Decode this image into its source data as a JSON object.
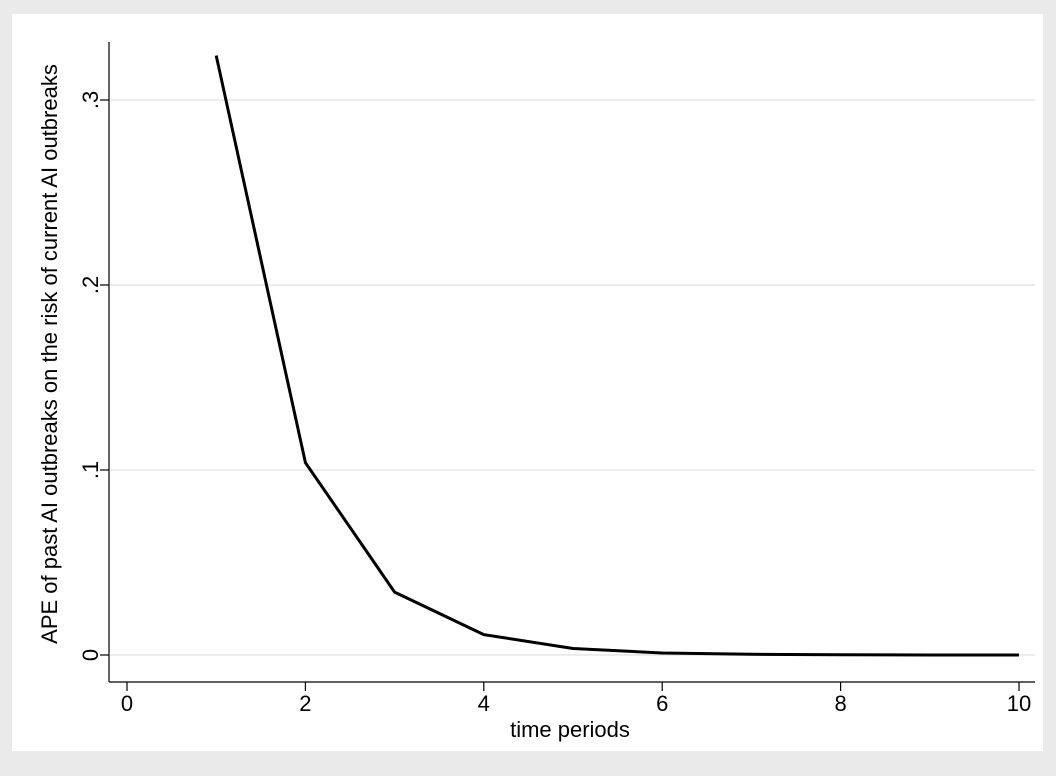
{
  "chart_data": {
    "type": "line",
    "title": "",
    "xlabel": "time periods",
    "ylabel": "APE of past AI outbreaks on the risk of current AI outbreaks",
    "xlim": [
      0,
      10
    ],
    "ylim": [
      0,
      0.3
    ],
    "x_ticks": [
      0,
      2,
      4,
      6,
      8,
      10
    ],
    "x_tick_labels": [
      "0",
      "2",
      "4",
      "6",
      "8",
      "10"
    ],
    "y_ticks": [
      0,
      0.1,
      0.2,
      0.3
    ],
    "y_tick_labels": [
      "0",
      ".1",
      ".2",
      ".3"
    ],
    "grid": "horizontal",
    "series": [
      {
        "x": [
          1,
          2,
          3,
          4,
          5,
          6,
          7,
          8,
          9,
          10
        ],
        "values": [
          0.324,
          0.104,
          0.034,
          0.011,
          0.0035,
          0.0011,
          0.0004,
          0.0001,
          0.0,
          0.0
        ],
        "color": "#000000"
      }
    ],
    "colors": {
      "outer_background": "#eaeaea",
      "plot_background": "#ffffff",
      "grid": "#dfe9ee",
      "line": "#000000"
    }
  }
}
